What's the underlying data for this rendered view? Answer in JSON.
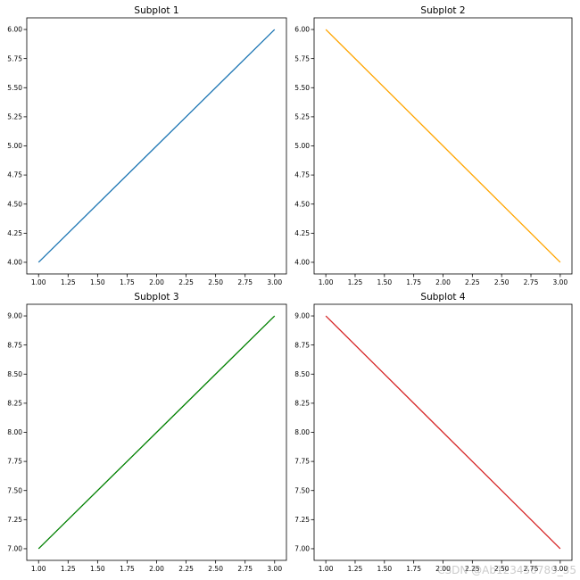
{
  "figure": {
    "watermark": "CSDN @Ab123456789_35"
  },
  "chart_data": [
    {
      "type": "line",
      "title": "Subplot 1",
      "x": [
        1,
        2,
        3
      ],
      "series": [
        {
          "values": [
            4,
            5,
            6
          ],
          "color": "#1f77b4"
        }
      ],
      "xlim": [
        0.9,
        3.1
      ],
      "ylim": [
        3.9,
        6.1
      ],
      "xticks": [
        "1.00",
        "1.25",
        "1.50",
        "1.75",
        "2.00",
        "2.25",
        "2.50",
        "2.75",
        "3.00"
      ],
      "yticks": [
        "4.00",
        "4.25",
        "4.50",
        "4.75",
        "5.00",
        "5.25",
        "5.50",
        "5.75",
        "6.00"
      ],
      "grid": false
    },
    {
      "type": "line",
      "title": "Subplot 2",
      "x": [
        1,
        2,
        3
      ],
      "series": [
        {
          "values": [
            6,
            5,
            4
          ],
          "color": "#ffa500"
        }
      ],
      "xlim": [
        0.9,
        3.1
      ],
      "ylim": [
        3.9,
        6.1
      ],
      "xticks": [
        "1.00",
        "1.25",
        "1.50",
        "1.75",
        "2.00",
        "2.25",
        "2.50",
        "2.75",
        "3.00"
      ],
      "yticks": [
        "4.00",
        "4.25",
        "4.50",
        "4.75",
        "5.00",
        "5.25",
        "5.50",
        "5.75",
        "6.00"
      ],
      "grid": false
    },
    {
      "type": "line",
      "title": "Subplot 3",
      "x": [
        1,
        2,
        3
      ],
      "series": [
        {
          "values": [
            7,
            8,
            9
          ],
          "color": "#008000"
        }
      ],
      "xlim": [
        0.9,
        3.1
      ],
      "ylim": [
        6.9,
        9.1
      ],
      "xticks": [
        "1.00",
        "1.25",
        "1.50",
        "1.75",
        "2.00",
        "2.25",
        "2.50",
        "2.75",
        "3.00"
      ],
      "yticks": [
        "7.00",
        "7.25",
        "7.50",
        "7.75",
        "8.00",
        "8.25",
        "8.50",
        "8.75",
        "9.00"
      ],
      "grid": false
    },
    {
      "type": "line",
      "title": "Subplot 4",
      "x": [
        1,
        2,
        3
      ],
      "series": [
        {
          "values": [
            9,
            8,
            7
          ],
          "color": "#d62728"
        }
      ],
      "xlim": [
        0.9,
        3.1
      ],
      "ylim": [
        6.9,
        9.1
      ],
      "xticks": [
        "1.00",
        "1.25",
        "1.50",
        "1.75",
        "2.00",
        "2.25",
        "2.50",
        "2.75",
        "3.00"
      ],
      "yticks": [
        "7.00",
        "7.25",
        "7.50",
        "7.75",
        "8.00",
        "8.25",
        "8.50",
        "8.75",
        "9.00"
      ],
      "grid": false
    }
  ]
}
